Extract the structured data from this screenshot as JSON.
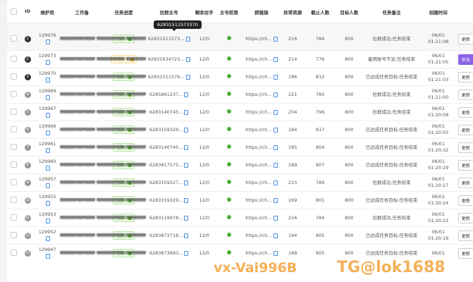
{
  "table": {
    "headers": [
      "",
      "ID",
      "维护用",
      "工作备",
      "任务进度",
      "拉群主号",
      "剩余拉手",
      "主号权限",
      "群链接",
      "异常资源",
      "截止人数",
      "目标人数",
      "任务备注",
      "创建时间",
      ""
    ],
    "rows": [
      {
        "idx": "1",
        "uid": "129976",
        "status": "已完成",
        "status_type": "done",
        "phone": "62831511573...",
        "remain": "12/0",
        "link": "https://ch...",
        "abn": "216",
        "cut": "784",
        "target": "800",
        "note": "拉群成功,任务结束",
        "date": "06/01",
        "time": "01:21:08",
        "action": "更新",
        "action_type": "default"
      },
      {
        "idx": "2",
        "uid": "129973",
        "status": "等待补号",
        "status_type": "wait",
        "phone": "62831634723...",
        "remain": "12/0",
        "link": "https://ch...",
        "abn": "214",
        "cut": "776",
        "target": "800",
        "note": "备用账号不足,任务结束",
        "date": "06/01",
        "time": "01:21:05",
        "action": "补充",
        "action_type": "purple"
      },
      {
        "idx": "3",
        "uid": "129970",
        "status": "已完成",
        "status_type": "done",
        "phone": "62831511576...",
        "remain": "12/0",
        "link": "https://ch...",
        "abn": "186",
        "cut": "812",
        "target": "800",
        "note": "已达成任务目标,任务结束",
        "date": "06/01",
        "time": "01:21:03",
        "action": "更新",
        "action_type": "default"
      },
      {
        "idx": "4",
        "uid": "129969",
        "status": "已完成",
        "status_type": "done",
        "phone": "6285861237...",
        "remain": "12/0",
        "link": "https://ch...",
        "abn": "221",
        "cut": "785",
        "target": "800",
        "note": "拉群成功,任务结束",
        "date": "06/01",
        "time": "01:21:00",
        "action": "更新",
        "action_type": "default"
      },
      {
        "idx": "5",
        "uid": "129967",
        "status": "已完成",
        "status_type": "done",
        "phone": "6283140745...",
        "remain": "12/0",
        "link": "https://ch...",
        "abn": "204",
        "cut": "796",
        "target": "800",
        "note": "拉群成功,任务结束",
        "date": "06/01",
        "time": "01:20:58",
        "action": "更新",
        "action_type": "default"
      },
      {
        "idx": "6",
        "uid": "129966",
        "status": "已完成",
        "status_type": "done",
        "phone": "6283159329...",
        "remain": "12/0",
        "link": "https://ch...",
        "abn": "184",
        "cut": "817",
        "target": "800",
        "note": "已达成任务目标,任务结束",
        "date": "06/01",
        "time": "01:20:55",
        "action": "更新",
        "action_type": "default"
      },
      {
        "idx": "7",
        "uid": "129961",
        "status": "已完成",
        "status_type": "done",
        "phone": "6283140745...",
        "remain": "12/0",
        "link": "https://ch...",
        "abn": "185",
        "cut": "804",
        "target": "800",
        "note": "已达成任务目标,任务结束",
        "date": "06/01",
        "time": "01:20:32",
        "action": "更新",
        "action_type": "default"
      },
      {
        "idx": "8",
        "uid": "129960",
        "status": "已完成",
        "status_type": "done",
        "phone": "6283817575...",
        "remain": "12/0",
        "link": "https://ch...",
        "abn": "189",
        "cut": "807",
        "target": "800",
        "note": "已达成任务目标,任务结束",
        "date": "06/01",
        "time": "01:20:29",
        "action": "更新",
        "action_type": "default"
      },
      {
        "idx": "9",
        "uid": "129957",
        "status": "已完成",
        "status_type": "done",
        "phone": "6283159327...",
        "remain": "12/0",
        "link": "https://ch...",
        "abn": "210",
        "cut": "789",
        "target": "800",
        "note": "拉群成功,任务结束",
        "date": "06/01",
        "time": "01:20:27",
        "action": "更新",
        "action_type": "default"
      },
      {
        "idx": "10",
        "uid": "129955",
        "status": "已完成",
        "status_type": "done",
        "phone": "6283159329...",
        "remain": "12/0",
        "link": "https://ch...",
        "abn": "169",
        "cut": "801",
        "target": "800",
        "note": "已达成任务目标,任务结束",
        "date": "06/01",
        "time": "01:20:24",
        "action": "更新",
        "action_type": "default"
      },
      {
        "idx": "11",
        "uid": "129953",
        "status": "已完成",
        "status_type": "done",
        "phone": "6283119978...",
        "remain": "12/0",
        "link": "https://ch...",
        "abn": "216",
        "cut": "784",
        "target": "800",
        "note": "拉群成功,任务结束",
        "date": "06/01",
        "time": "01:20:22",
        "action": "更新",
        "action_type": "default"
      },
      {
        "idx": "12",
        "uid": "129952",
        "status": "已完成",
        "status_type": "done",
        "phone": "6283873718...",
        "remain": "12/0",
        "link": "https://ch...",
        "abn": "194",
        "cut": "805",
        "target": "800",
        "note": "已达成任务目标,任务结束",
        "date": "06/01",
        "time": "01:20:19",
        "action": "更新",
        "action_type": "default"
      },
      {
        "idx": "13",
        "uid": "129947",
        "status": "已完成",
        "status_type": "done",
        "phone": "6283873883...",
        "remain": "12/0",
        "link": "https://ch...",
        "abn": "188",
        "cut": "805",
        "target": "800",
        "note": "已达成任务目标,任务结束",
        "date": "06/01",
        "time": "",
        "action": "更新",
        "action_type": "default"
      }
    ]
  },
  "tooltip": "62831511573370",
  "watermarks": [
    "vx-Vai996B",
    "TG@lok1688"
  ],
  "colors": {
    "done": "#52c41a",
    "wait": "#d4a017",
    "online": "#4caf3a",
    "accent": "#8a63e8"
  }
}
